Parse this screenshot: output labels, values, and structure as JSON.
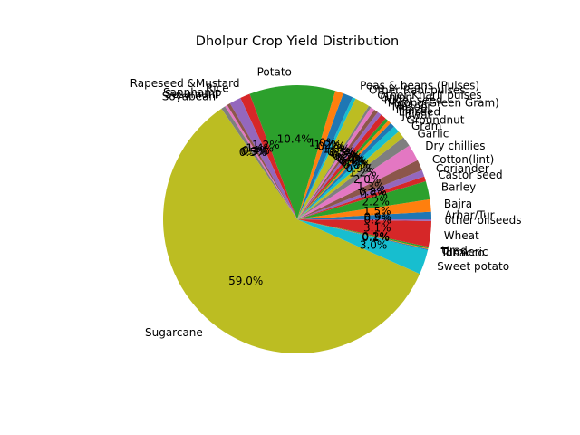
{
  "chart_data": {
    "type": "pie",
    "title": "Dholpur Crop Yield Distribution",
    "start_angle_deg": 0,
    "direction": "counterclockwise",
    "slices": [
      {
        "label": "Arhar/Tur",
        "value": 0.9,
        "pct": "0.9%",
        "color": "#1f77b4"
      },
      {
        "label": "Bajra",
        "value": 1.5,
        "pct": "1.5%",
        "color": "#ff7f0e"
      },
      {
        "label": "Barley",
        "value": 2.2,
        "pct": "2.2%",
        "color": "#2ca02c"
      },
      {
        "label": "Castor seed",
        "value": 0.6,
        "pct": "0.6%",
        "color": "#d62728"
      },
      {
        "label": "Coriander",
        "value": 0.8,
        "pct": "0.8%",
        "color": "#9467bd"
      },
      {
        "label": "Cotton(lint)",
        "value": 1.3,
        "pct": "1.3%",
        "color": "#8c564b"
      },
      {
        "label": "Dry chillies",
        "value": 2.0,
        "pct": "2.0%",
        "color": "#e377c2"
      },
      {
        "label": "Garlic",
        "value": 1.2,
        "pct": "1.2%",
        "color": "#7f7f7f"
      },
      {
        "label": "Gram",
        "value": 0.9,
        "pct": "0.9%",
        "color": "#bcbd22"
      },
      {
        "label": "Groundnut",
        "value": 0.8,
        "pct": "0.8%",
        "color": "#17becf"
      },
      {
        "label": "Jowar",
        "value": 0.6,
        "pct": "0.6%",
        "color": "#1f77b4"
      },
      {
        "label": "Linseed",
        "value": 0.4,
        "pct": "0.4%",
        "color": "#ff7f0e"
      },
      {
        "label": "Maize",
        "value": 0.4,
        "pct": "0.4%",
        "color": "#2ca02c"
      },
      {
        "label": "Masoor",
        "value": 0.7,
        "pct": "0.7%",
        "color": "#d62728"
      },
      {
        "label": "Moong(Green Gram)",
        "value": 0.5,
        "pct": "0.5%",
        "color": "#9467bd"
      },
      {
        "label": "Niger seed",
        "value": 0.5,
        "pct": "0.5%",
        "color": "#8c564b"
      },
      {
        "label": "Onion",
        "value": 0.5,
        "pct": "0.5%",
        "color": "#e377c2"
      },
      {
        "label": "Other Kharif pulses",
        "value": 0.3,
        "pct": "0.3%",
        "color": "#7f7f7f"
      },
      {
        "label": "Other Rabi pulses",
        "value": 1.8,
        "pct": "1.8%",
        "color": "#bcbd22"
      },
      {
        "label": "Peas & beans (Pulses)",
        "value": 0.4,
        "pct": "0.4%",
        "color": "#17becf"
      },
      {
        "label": "",
        "value": 1.2,
        "pct": "1.2%",
        "color": "#1f77b4"
      },
      {
        "label": "",
        "value": 1.0,
        "pct": "1.0%",
        "color": "#ff7f0e"
      },
      {
        "label": "Potato",
        "value": 10.4,
        "pct": "10.4%",
        "color": "#2ca02c"
      },
      {
        "label": "Rapeseed &Mustard",
        "value": 1.2,
        "pct": "1.2%",
        "color": "#d62728"
      },
      {
        "label": "Rice",
        "value": 1.4,
        "pct": "1.4%",
        "color": "#9467bd"
      },
      {
        "label": "Sannhamp",
        "value": 0.4,
        "pct": "0.4%",
        "color": "#8c564b"
      },
      {
        "label": "Sesamum",
        "value": 0.3,
        "pct": "0.3%",
        "color": "#e377c2"
      },
      {
        "label": "Soyabean",
        "value": 0.5,
        "pct": "0.5%",
        "color": "#7f7f7f"
      },
      {
        "label": "Sugarcane",
        "value": 59.0,
        "pct": "59.0%",
        "color": "#bcbd22"
      },
      {
        "label": "Sweet potato",
        "value": 3.0,
        "pct": "3.0%",
        "color": "#17becf"
      },
      {
        "label": "Tobacco",
        "value": 0.1,
        "pct": "0.1%",
        "color": "#1f77b4"
      },
      {
        "label": "Turmeric",
        "value": 0.1,
        "pct": "0.1%",
        "color": "#ff7f0e"
      },
      {
        "label": "Urad",
        "value": 0.2,
        "pct": "0.2%",
        "color": "#2ca02c"
      },
      {
        "label": "Wheat",
        "value": 3.1,
        "pct": "3.1%",
        "color": "#d62728"
      },
      {
        "label": "other oilseeds",
        "value": 0.2,
        "pct": "0.2%",
        "color": "#9467bd"
      }
    ]
  }
}
